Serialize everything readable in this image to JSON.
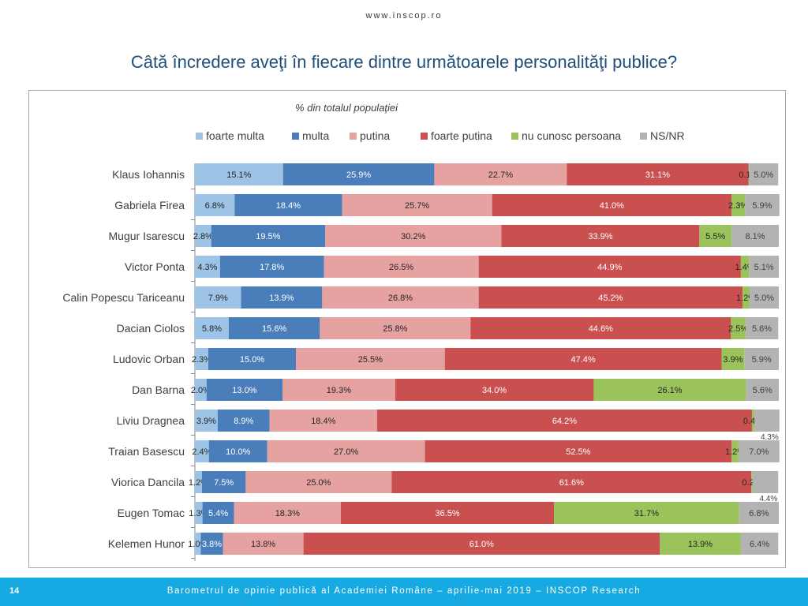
{
  "header": {
    "site": "www.inscop.ro",
    "title": "Câtă încredere aveţi în fiecare dintre următoarele personalităţi publice?"
  },
  "footer": {
    "page_number": "14",
    "text": "Barometrul de opinie publică al Academiei Române – aprilie-mai 2019 – INSCOP Research"
  },
  "chart_data": {
    "type": "bar",
    "orientation": "horizontal",
    "stacked": true,
    "subtitle": "% din totalul populaţiei",
    "legend_position": "top",
    "xlim": [
      0,
      100
    ],
    "categories": [
      "Klaus Iohannis",
      "Gabriela Firea",
      "Mugur Isarescu",
      "Victor Ponta",
      "Calin Popescu Tariceanu",
      "Dacian Ciolos",
      "Ludovic Orban",
      "Dan Barna",
      "Liviu Dragnea",
      "Traian Basescu",
      "Viorica Dancila",
      "Eugen Tomac",
      "Kelemen Hunor"
    ],
    "series": [
      {
        "name": "foarte multa",
        "color": "#9dc3e6",
        "values": [
          15.1,
          6.8,
          2.8,
          4.3,
          7.9,
          5.8,
          2.3,
          2.0,
          3.9,
          2.4,
          1.2,
          1.3,
          1.0
        ]
      },
      {
        "name": "multa",
        "color": "#4a7ebb",
        "values": [
          25.9,
          18.4,
          19.5,
          17.8,
          13.9,
          15.6,
          15.0,
          13.0,
          8.9,
          10.0,
          7.5,
          5.4,
          3.8
        ]
      },
      {
        "name": "putina",
        "color": "#e6a1a1",
        "values": [
          22.7,
          25.7,
          30.2,
          26.5,
          26.8,
          25.8,
          25.5,
          19.3,
          18.4,
          27.0,
          25.0,
          18.3,
          13.8
        ]
      },
      {
        "name": "foarte putina",
        "color": "#c9504f",
        "values": [
          31.1,
          41.0,
          33.9,
          44.9,
          45.2,
          44.6,
          47.4,
          34.0,
          64.2,
          52.5,
          61.6,
          36.5,
          61.0
        ]
      },
      {
        "name": "nu cunosc persoana",
        "color": "#9bc35b",
        "values": [
          0.1,
          2.3,
          5.5,
          1.4,
          1.2,
          2.5,
          3.9,
          26.1,
          0.4,
          1.2,
          0.2,
          31.7,
          13.9
        ]
      },
      {
        "name": "NS/NR",
        "color": "#b3b3b3",
        "values": [
          5.0,
          5.9,
          8.1,
          5.1,
          5.0,
          5.6,
          5.9,
          5.6,
          4.3,
          7.0,
          4.4,
          6.8,
          6.4
        ]
      }
    ]
  }
}
